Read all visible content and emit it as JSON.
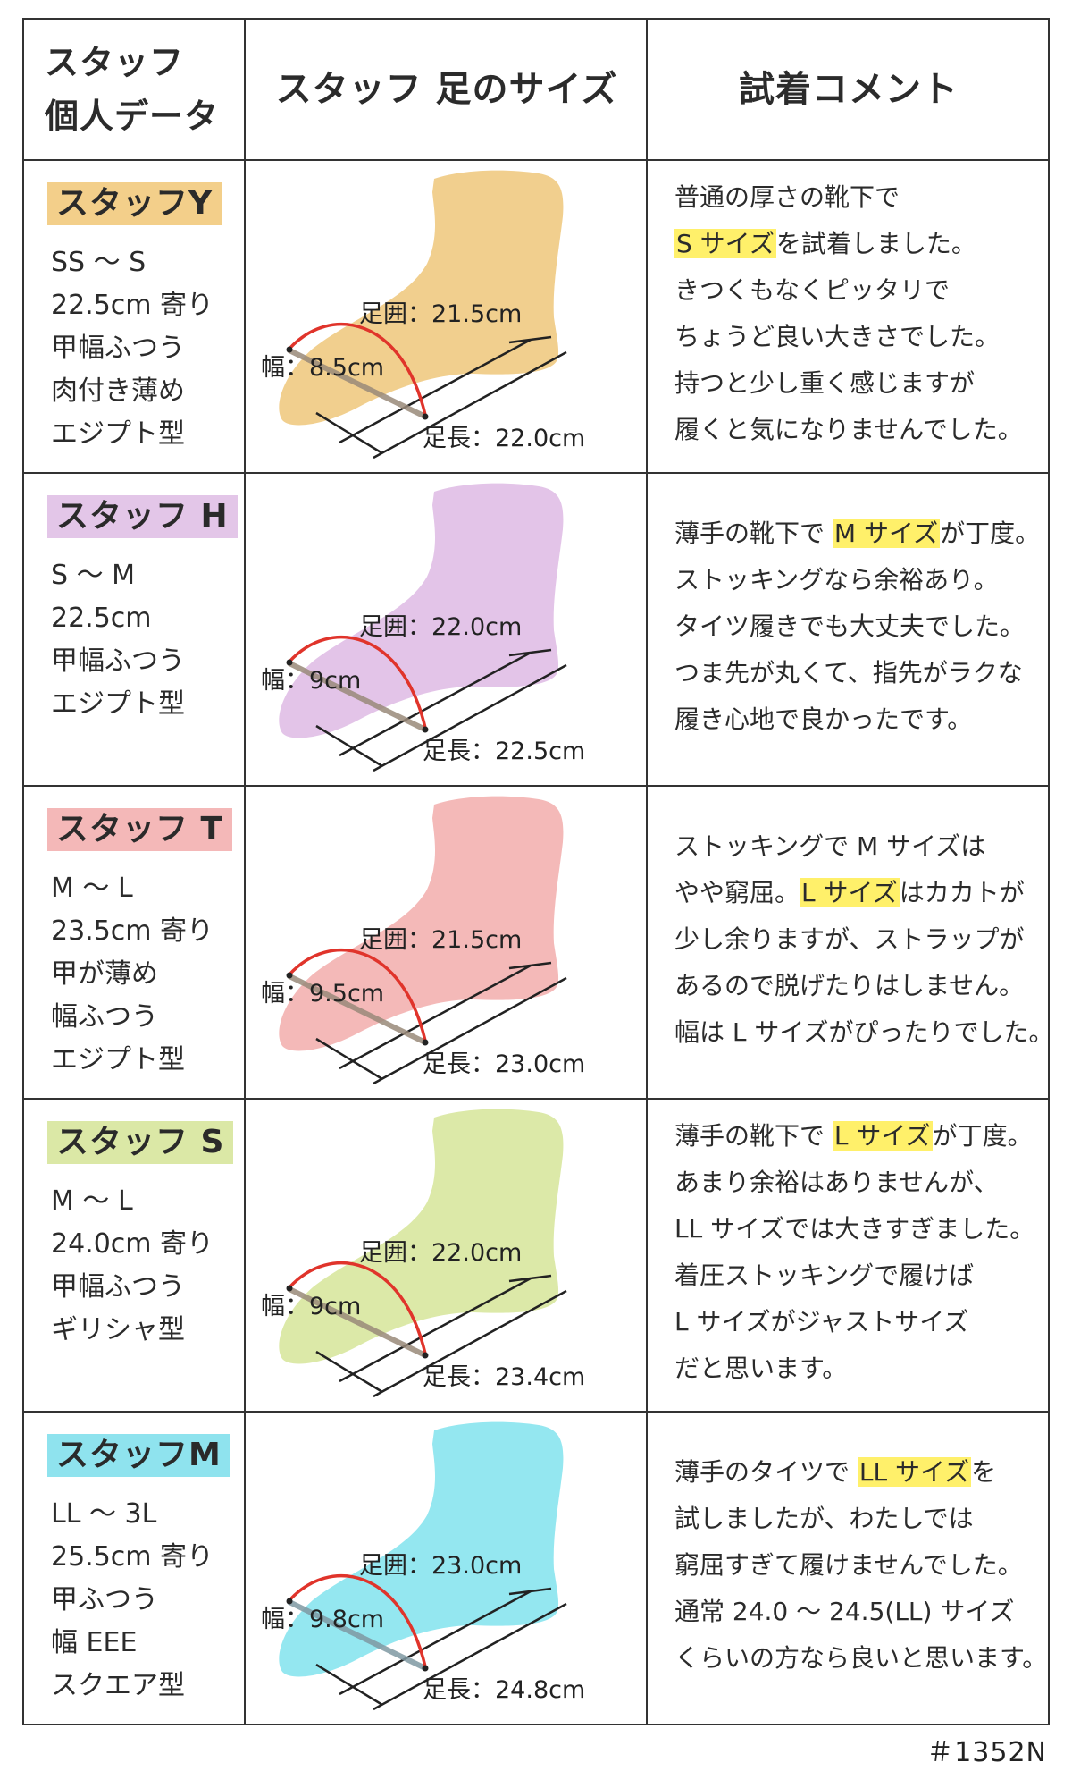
{
  "header": {
    "col1": [
      "スタッフ",
      "個人データ"
    ],
    "col2": "スタッフ 足のサイズ",
    "col3": "試着コメント"
  },
  "staff": [
    {
      "name": "スタッフY",
      "badge_color": "#f3cf8a",
      "foot_color": "#f1cf8e",
      "traits": [
        "SS ～ S",
        "22.5cm 寄り",
        "甲幅ふつう",
        "肉付き薄め",
        "エジプト型"
      ],
      "measurements": {
        "girth": "足囲：21.5cm",
        "width": "幅：8.5cm",
        "length": "足長：22.0cm"
      },
      "comment": [
        {
          "pre": "普通の厚さの靴下で",
          "hl": "",
          "post": ""
        },
        {
          "pre": "",
          "hl": "S サイズ",
          "post": "を試着しました。"
        },
        {
          "pre": "きつくもなくピッタリで",
          "hl": "",
          "post": ""
        },
        {
          "pre": "ちょうど良い大きさでした。",
          "hl": "",
          "post": ""
        },
        {
          "pre": "持つと少し重く感じますが",
          "hl": "",
          "post": ""
        },
        {
          "pre": "履くと気になりませんでした。",
          "hl": "",
          "post": ""
        }
      ]
    },
    {
      "name": "スタッフ H",
      "badge_color": "#e3c6e8",
      "foot_color": "#e3c4e8",
      "traits": [
        "S ～ M",
        "22.5cm",
        "甲幅ふつう",
        "エジプト型"
      ],
      "measurements": {
        "girth": "足囲：22.0cm",
        "width": "幅：9cm",
        "length": "足長：22.5cm"
      },
      "comment": [
        {
          "pre": "薄手の靴下で ",
          "hl": "M サイズ",
          "post": "が丁度。"
        },
        {
          "pre": "ストッキングなら余裕あり。",
          "hl": "",
          "post": ""
        },
        {
          "pre": "タイツ履きでも大丈夫でした。",
          "hl": "",
          "post": ""
        },
        {
          "pre": "つま先が丸くて、指先がラクな",
          "hl": "",
          "post": ""
        },
        {
          "pre": "履き心地で良かったです。",
          "hl": "",
          "post": ""
        }
      ]
    },
    {
      "name": "スタッフ T",
      "badge_color": "#f4b8b8",
      "foot_color": "#f4b9b8",
      "traits": [
        "M ～ L",
        "23.5cm 寄り",
        "甲が薄め",
        "幅ふつう",
        "エジプト型"
      ],
      "measurements": {
        "girth": "足囲：21.5cm",
        "width": "幅：9.5cm",
        "length": "足長：23.0cm"
      },
      "comment": [
        {
          "pre": "ストッキングで M サイズは",
          "hl": "",
          "post": ""
        },
        {
          "pre": "やや窮屈。",
          "hl": "L サイズ",
          "post": "はカカトが"
        },
        {
          "pre": "少し余りますが、ストラップが",
          "hl": "",
          "post": ""
        },
        {
          "pre": "あるので脱げたりはしません。",
          "hl": "",
          "post": ""
        },
        {
          "pre": "幅は L サイズがぴったりでした。",
          "hl": "",
          "post": ""
        }
      ]
    },
    {
      "name": "スタッフ S",
      "badge_color": "#dbe8a6",
      "foot_color": "#dce9a8",
      "traits": [
        "M ～ L",
        "24.0cm 寄り",
        "甲幅ふつう",
        "ギリシャ型"
      ],
      "measurements": {
        "girth": "足囲：22.0cm",
        "width": "幅：9cm",
        "length": "足長：23.4cm"
      },
      "comment": [
        {
          "pre": "薄手の靴下で ",
          "hl": "L サイズ",
          "post": "が丁度。"
        },
        {
          "pre": "あまり余裕はありませんが、",
          "hl": "",
          "post": ""
        },
        {
          "pre": "LL サイズでは大きすぎました。",
          "hl": "",
          "post": ""
        },
        {
          "pre": "着圧ストッキングで履けば",
          "hl": "",
          "post": ""
        },
        {
          "pre": "L サイズがジャストサイズ",
          "hl": "",
          "post": ""
        },
        {
          "pre": "だと思います。",
          "hl": "",
          "post": ""
        }
      ]
    },
    {
      "name": "スタッフM",
      "badge_color": "#8fe3ee",
      "foot_color": "#94e7f0",
      "traits": [
        "LL ～ 3L",
        "25.5cm 寄り",
        "甲ふつう",
        "幅 EEE",
        "スクエア型"
      ],
      "measurements": {
        "girth": "足囲：23.0cm",
        "width": "幅：9.8cm",
        "length": "足長：24.8cm"
      },
      "comment": [
        {
          "pre": "薄手のタイツで ",
          "hl": "LL サイズ",
          "post": "を"
        },
        {
          "pre": "試しましたが、わたしでは",
          "hl": "",
          "post": ""
        },
        {
          "pre": "窮屈すぎて履けませんでした。",
          "hl": "",
          "post": ""
        },
        {
          "pre": "通常 24.0 ～ 24.5(LL) サイズ",
          "hl": "",
          "post": ""
        },
        {
          "pre": "くらいの方なら良いと思います。",
          "hl": "",
          "post": ""
        }
      ]
    }
  ],
  "footer": {
    "code": "＃1352N"
  }
}
